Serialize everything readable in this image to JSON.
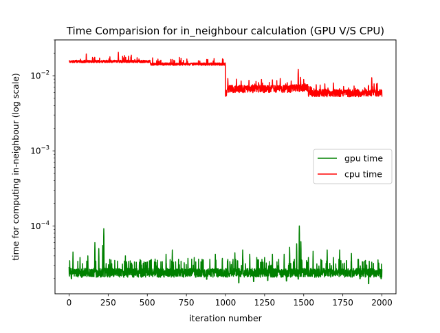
{
  "chart_data": {
    "type": "line",
    "title": "Time Comparision for in_neighbour calculation (GPU V/S CPU)",
    "xlabel": "iteration number",
    "ylabel": "time for computing in-neighbour (log scale)",
    "xlim": [
      -90,
      2090
    ],
    "ylim": [
      1.25e-05,
      0.03
    ],
    "yscale": "log",
    "grid": false,
    "legend_placement": "center-right",
    "x_ticks": [
      0,
      250,
      500,
      750,
      1000,
      1250,
      1500,
      1750,
      2000
    ],
    "x_tick_labels": [
      "0",
      "250",
      "500",
      "750",
      "1000",
      "1250",
      "1500",
      "1750",
      "2000"
    ],
    "y_ticks": [
      {
        "value": 0.0001,
        "base": "10",
        "exp": "−4"
      },
      {
        "value": 0.001,
        "base": "10",
        "exp": "−3"
      },
      {
        "value": 0.01,
        "base": "10",
        "exp": "−2"
      }
    ],
    "series": [
      {
        "name": "gpu time",
        "color": "#008000",
        "baseline": 2.4e-05,
        "noise": 3.25e-06,
        "dips": [
          [
            0,
            2.05e-05
          ],
          [
            15,
            1.98e-05
          ],
          [
            120,
            1.95e-05
          ],
          [
            310,
            1.96e-05
          ],
          [
            520,
            1.95e-05
          ],
          [
            760,
            1.97e-05
          ],
          [
            880,
            1.95e-05
          ],
          [
            1015,
            1.95e-05
          ],
          [
            1085,
            1.75e-05
          ],
          [
            1180,
            1.82e-05
          ],
          [
            1270,
            1.88e-05
          ],
          [
            1390,
            1.85e-05
          ],
          [
            1465,
            1.96e-05
          ],
          [
            1560,
            1.95e-05
          ],
          [
            1730,
            1.96e-05
          ],
          [
            1860,
            1.98e-05
          ],
          [
            1915,
            1.7e-05
          ],
          [
            1995,
            1.98e-05
          ]
        ],
        "spikes": [
          [
            0,
            2.85e-05
          ],
          [
            25,
            4.5e-05
          ],
          [
            70,
            3.8e-05
          ],
          [
            120,
            4e-05
          ],
          [
            165,
            6e-05
          ],
          [
            190,
            5e-05
          ],
          [
            215,
            5.5e-05
          ],
          [
            222,
            9.2e-05
          ],
          [
            260,
            3.6e-05
          ],
          [
            310,
            3.4e-05
          ],
          [
            360,
            4e-05
          ],
          [
            400,
            3.2e-05
          ],
          [
            450,
            3.3e-05
          ],
          [
            520,
            3.5e-05
          ],
          [
            565,
            3.5e-05
          ],
          [
            620,
            4.2e-05
          ],
          [
            660,
            4.8e-05
          ],
          [
            700,
            3.6e-05
          ],
          [
            760,
            3.7e-05
          ],
          [
            800,
            3.8e-05
          ],
          [
            850,
            3.6e-05
          ],
          [
            900,
            3.6e-05
          ],
          [
            935,
            4.2e-05
          ],
          [
            980,
            3.7e-05
          ],
          [
            1015,
            3.6e-05
          ],
          [
            1060,
            4.4e-05
          ],
          [
            1110,
            4.8e-05
          ],
          [
            1155,
            4.2e-05
          ],
          [
            1200,
            3.8e-05
          ],
          [
            1250,
            3.8e-05
          ],
          [
            1300,
            4.2e-05
          ],
          [
            1340,
            3.6e-05
          ],
          [
            1375,
            4.2e-05
          ],
          [
            1410,
            5.2e-05
          ],
          [
            1440,
            3.6e-05
          ],
          [
            1455,
            5.8e-05
          ],
          [
            1472,
            0.0001
          ],
          [
            1482,
            6.2e-05
          ],
          [
            1530,
            3.8e-05
          ],
          [
            1560,
            4.6e-05
          ],
          [
            1610,
            3.6e-05
          ],
          [
            1650,
            4.8e-05
          ],
          [
            1690,
            3.8e-05
          ],
          [
            1730,
            4.8e-05
          ],
          [
            1760,
            3.2e-05
          ],
          [
            1805,
            4.3e-05
          ],
          [
            1850,
            3.6e-05
          ],
          [
            1890,
            3.4e-05
          ],
          [
            1935,
            3.3e-05
          ],
          [
            1980,
            3.2e-05
          ],
          [
            2000,
            2.2e-05
          ]
        ]
      },
      {
        "name": "cpu time",
        "color": "#ff0000",
        "noise": 0.11,
        "segments": [
          {
            "x": [
              0,
              520
            ],
            "level": 0.0155
          },
          {
            "x": [
              520,
              1000
            ],
            "level": 0.0143
          },
          {
            "x": [
              1000,
              1010
            ],
            "level": 0.0058
          },
          {
            "x": [
              1010,
              1420
            ],
            "level": 0.0067
          },
          {
            "x": [
              1420,
              1530
            ],
            "level": 0.0069
          },
          {
            "x": [
              1530,
              2000
            ],
            "level": 0.0059
          }
        ],
        "spikes": [
          [
            110,
            0.0195
          ],
          [
            150,
            0.0175
          ],
          [
            195,
            0.0172
          ],
          [
            255,
            0.0168
          ],
          [
            315,
            0.0205
          ],
          [
            355,
            0.0185
          ],
          [
            395,
            0.0178
          ],
          [
            575,
            0.0155
          ],
          [
            650,
            0.0165
          ],
          [
            675,
            0.0158
          ],
          [
            1007,
            0.0063
          ],
          [
            1015,
            0.0092
          ],
          [
            1070,
            0.009
          ],
          [
            1100,
            0.0085
          ],
          [
            1150,
            0.0087
          ],
          [
            1230,
            0.0089
          ],
          [
            1300,
            0.0088
          ],
          [
            1350,
            0.0092
          ],
          [
            1420,
            0.0085
          ],
          [
            1465,
            0.0122
          ],
          [
            1480,
            0.0095
          ],
          [
            1500,
            0.0089
          ],
          [
            1580,
            0.0076
          ],
          [
            1635,
            0.0078
          ],
          [
            1690,
            0.008
          ],
          [
            1755,
            0.0072
          ],
          [
            1830,
            0.0068
          ],
          [
            1890,
            0.0069
          ],
          [
            1935,
            0.0094
          ],
          [
            1950,
            0.0078
          ],
          [
            1970,
            0.0079
          ]
        ]
      }
    ]
  }
}
